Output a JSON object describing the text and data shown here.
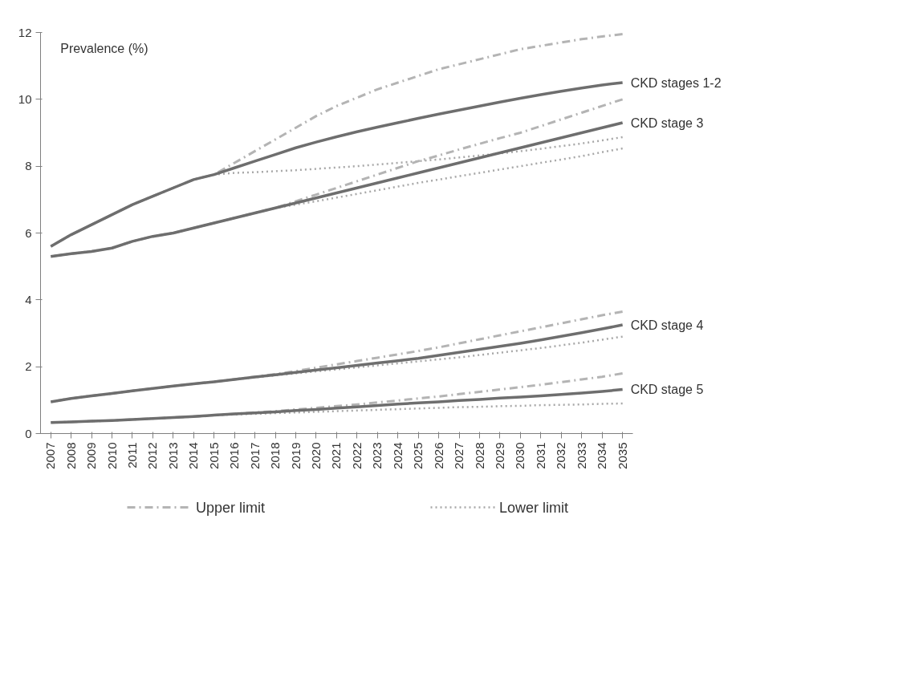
{
  "chart_data": {
    "type": "line",
    "ylabel": "Prevalence (%)",
    "categories": [
      "2007",
      "2008",
      "2009",
      "2010",
      "2011",
      "2012",
      "2013",
      "2014",
      "2015",
      "2016",
      "2017",
      "2018",
      "2019",
      "2020",
      "2021",
      "2022",
      "2023",
      "2024",
      "2025",
      "2026",
      "2027",
      "2028",
      "2029",
      "2030",
      "2031",
      "2032",
      "2033",
      "2034",
      "2035"
    ],
    "ylim": [
      0,
      12
    ],
    "yticks": [
      0,
      2,
      4,
      6,
      8,
      10,
      12
    ],
    "grid": false,
    "legend": "bottom",
    "series": [
      {
        "name": "Upper limit",
        "color": "#b4b4b4",
        "line_style": "dashed",
        "values": [
          5.6,
          5.95,
          6.25,
          6.55,
          6.85,
          7.1,
          7.35,
          7.6,
          7.75,
          8.1,
          8.45,
          8.8,
          9.15,
          9.5,
          9.8,
          10.05,
          10.3,
          10.5,
          10.7,
          10.9,
          11.05,
          11.2,
          11.35,
          11.5,
          11.6,
          11.7,
          11.8,
          11.88,
          11.95
        ]
      },
      {
        "name": "Lower limit",
        "color": "#a8a8a8",
        "line_style": "dotted",
        "values": [
          5.6,
          5.95,
          6.25,
          6.55,
          6.85,
          7.1,
          7.35,
          7.6,
          7.75,
          7.8,
          7.82,
          7.85,
          7.88,
          7.92,
          7.96,
          8.0,
          8.05,
          8.1,
          8.15,
          8.2,
          8.26,
          8.32,
          8.38,
          8.45,
          8.52,
          8.6,
          8.68,
          8.77,
          8.87
        ]
      },
      {
        "name": "CKD stages 1-2",
        "color": "#6e6e6e",
        "line_style": "solid",
        "values": [
          5.6,
          5.95,
          6.25,
          6.55,
          6.85,
          7.1,
          7.35,
          7.6,
          7.75,
          7.95,
          8.15,
          8.35,
          8.55,
          8.72,
          8.88,
          9.03,
          9.17,
          9.3,
          9.43,
          9.56,
          9.68,
          9.8,
          9.92,
          10.03,
          10.14,
          10.24,
          10.34,
          10.43,
          10.5
        ]
      },
      {
        "color": "#b4b4b4",
        "line_style": "dashed",
        "values": [
          5.3,
          5.38,
          5.45,
          5.55,
          5.75,
          5.9,
          6.0,
          6.15,
          6.3,
          6.45,
          6.6,
          6.75,
          6.95,
          7.15,
          7.35,
          7.55,
          7.75,
          7.95,
          8.15,
          8.32,
          8.5,
          8.67,
          8.84,
          9.0,
          9.2,
          9.4,
          9.6,
          9.8,
          10.0
        ]
      },
      {
        "color": "#a8a8a8",
        "line_style": "dotted",
        "values": [
          5.3,
          5.38,
          5.45,
          5.55,
          5.75,
          5.9,
          6.0,
          6.15,
          6.3,
          6.45,
          6.6,
          6.75,
          6.85,
          6.95,
          7.06,
          7.17,
          7.28,
          7.39,
          7.5,
          7.6,
          7.7,
          7.8,
          7.9,
          8.0,
          8.1,
          8.2,
          8.3,
          8.42,
          8.53
        ]
      },
      {
        "name": "CKD stage 3",
        "color": "#6e6e6e",
        "line_style": "solid",
        "values": [
          5.3,
          5.38,
          5.45,
          5.55,
          5.75,
          5.9,
          6.0,
          6.15,
          6.3,
          6.45,
          6.6,
          6.75,
          6.9,
          7.05,
          7.2,
          7.35,
          7.5,
          7.65,
          7.8,
          7.95,
          8.1,
          8.25,
          8.4,
          8.55,
          8.7,
          8.85,
          9.0,
          9.15,
          9.3
        ]
      },
      {
        "color": "#b4b4b4",
        "line_style": "dashed",
        "values": [
          0.95,
          1.05,
          1.13,
          1.2,
          1.28,
          1.35,
          1.42,
          1.49,
          1.55,
          1.62,
          1.7,
          1.78,
          1.87,
          1.97,
          2.07,
          2.17,
          2.27,
          2.37,
          2.47,
          2.58,
          2.7,
          2.82,
          2.94,
          3.06,
          3.18,
          3.3,
          3.42,
          3.54,
          3.65
        ]
      },
      {
        "color": "#a8a8a8",
        "line_style": "dotted",
        "values": [
          0.95,
          1.05,
          1.13,
          1.2,
          1.28,
          1.35,
          1.42,
          1.49,
          1.55,
          1.62,
          1.68,
          1.74,
          1.8,
          1.86,
          1.92,
          1.98,
          2.04,
          2.1,
          2.16,
          2.22,
          2.28,
          2.35,
          2.42,
          2.49,
          2.56,
          2.64,
          2.72,
          2.81,
          2.9
        ]
      },
      {
        "name": "CKD stage 4",
        "color": "#6e6e6e",
        "line_style": "solid",
        "values": [
          0.95,
          1.05,
          1.13,
          1.2,
          1.28,
          1.35,
          1.42,
          1.49,
          1.55,
          1.62,
          1.69,
          1.76,
          1.83,
          1.9,
          1.97,
          2.04,
          2.11,
          2.18,
          2.25,
          2.34,
          2.43,
          2.52,
          2.61,
          2.7,
          2.8,
          2.91,
          3.02,
          3.13,
          3.25
        ]
      },
      {
        "color": "#b4b4b4",
        "line_style": "dashed",
        "values": [
          0.33,
          0.35,
          0.37,
          0.39,
          0.42,
          0.45,
          0.48,
          0.51,
          0.55,
          0.59,
          0.63,
          0.67,
          0.72,
          0.77,
          0.82,
          0.87,
          0.93,
          0.99,
          1.05,
          1.11,
          1.18,
          1.25,
          1.32,
          1.39,
          1.46,
          1.54,
          1.62,
          1.7,
          1.8
        ]
      },
      {
        "color": "#a8a8a8",
        "line_style": "dotted",
        "values": [
          0.33,
          0.35,
          0.37,
          0.39,
          0.42,
          0.45,
          0.48,
          0.51,
          0.55,
          0.57,
          0.59,
          0.61,
          0.63,
          0.65,
          0.67,
          0.69,
          0.71,
          0.73,
          0.75,
          0.77,
          0.79,
          0.8,
          0.82,
          0.83,
          0.85,
          0.86,
          0.87,
          0.89,
          0.9
        ]
      },
      {
        "name": "CKD stage 5",
        "color": "#6e6e6e",
        "line_style": "solid",
        "values": [
          0.33,
          0.35,
          0.37,
          0.39,
          0.42,
          0.45,
          0.48,
          0.51,
          0.55,
          0.59,
          0.62,
          0.65,
          0.69,
          0.72,
          0.76,
          0.8,
          0.84,
          0.88,
          0.92,
          0.95,
          0.99,
          1.02,
          1.06,
          1.09,
          1.13,
          1.17,
          1.21,
          1.26,
          1.32
        ]
      }
    ]
  }
}
